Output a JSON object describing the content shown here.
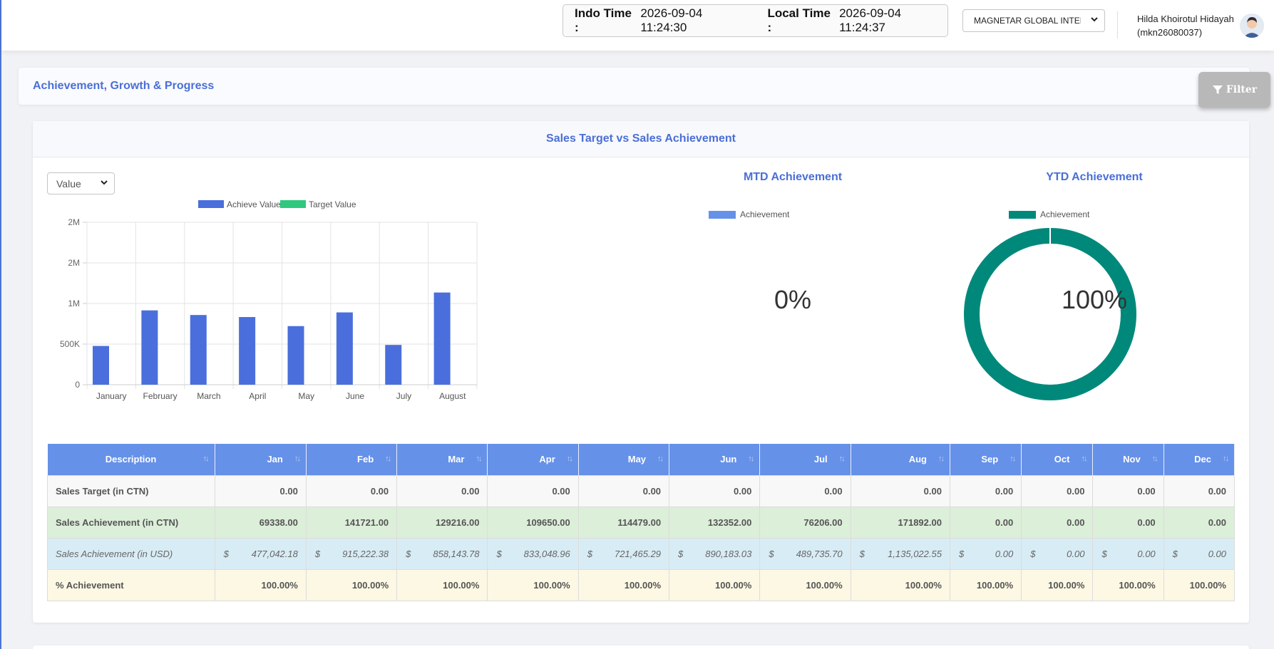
{
  "topbar": {
    "indo_time_label": "Indo Time :",
    "indo_time_value": "2026-09-04 11:24:30",
    "local_time_label": "Local Time :",
    "local_time_value": "2026-09-04 11:24:37",
    "company_select": "MAGNETAR GLOBAL INTERNATIONAL",
    "user_name": "Hilda Khoirotul Hidayah",
    "user_id": "(mkn26080037)"
  },
  "header": {
    "title": "Achievement, Growth & Progress",
    "filter_label": "Filter"
  },
  "card": {
    "title": "Sales Target vs Sales Achievement",
    "value_select": "Value"
  },
  "chart_data": [
    {
      "type": "bar",
      "categories": [
        "January",
        "February",
        "March",
        "April",
        "May",
        "June",
        "July",
        "August"
      ],
      "series": [
        {
          "name": "Achieve Value",
          "values": [
            477042.18,
            915222.38,
            858143.78,
            833048.96,
            721465.29,
            890183.03,
            489735.7,
            1135022.55
          ],
          "color": "#4a6fdc"
        },
        {
          "name": "Target Value",
          "values": [
            0,
            0,
            0,
            0,
            0,
            0,
            0,
            0
          ],
          "color": "#2ec97f"
        }
      ],
      "yticks": [
        "0",
        "500K",
        "1M",
        "2M",
        "2M"
      ],
      "ylim": [
        0,
        2000000
      ],
      "legend": "top",
      "grid": true
    },
    {
      "type": "pie",
      "title": "MTD Achievement",
      "series": [
        {
          "name": "Achievement",
          "values": [
            0
          ],
          "color": "#6691e8"
        }
      ],
      "center_label": "0%"
    },
    {
      "type": "pie",
      "title": "YTD Achievement",
      "series": [
        {
          "name": "Achievement",
          "values": [
            100
          ],
          "color": "#00897b"
        }
      ],
      "center_label": "100%"
    }
  ],
  "gauges": {
    "mtd": {
      "title": "MTD Achievement",
      "legend": "Achievement",
      "value": "0%",
      "color": "#6691e8"
    },
    "ytd": {
      "title": "YTD Achievement",
      "legend": "Achievement",
      "value": "100%",
      "color": "#00897b"
    }
  },
  "table": {
    "headers": [
      "Description",
      "Jan",
      "Feb",
      "Mar",
      "Apr",
      "May",
      "Jun",
      "Jul",
      "Aug",
      "Sep",
      "Oct",
      "Nov",
      "Dec"
    ],
    "rows": [
      {
        "label": "Sales Target (in CTN)",
        "values": [
          "0.00",
          "0.00",
          "0.00",
          "0.00",
          "0.00",
          "0.00",
          "0.00",
          "0.00",
          "0.00",
          "0.00",
          "0.00",
          "0.00"
        ]
      },
      {
        "label": "Sales Achievement (in CTN)",
        "values": [
          "69338.00",
          "141721.00",
          "129216.00",
          "109650.00",
          "114479.00",
          "132352.00",
          "76206.00",
          "171892.00",
          "0.00",
          "0.00",
          "0.00",
          "0.00"
        ]
      },
      {
        "label": "Sales Achievement (in USD)",
        "currency": "$",
        "values": [
          "477,042.18",
          "915,222.38",
          "858,143.78",
          "833,048.96",
          "721,465.29",
          "890,183.03",
          "489,735.70",
          "1,135,022.55",
          "0.00",
          "0.00",
          "0.00",
          "0.00"
        ]
      },
      {
        "label": "% Achievement",
        "values": [
          "100.00%",
          "100.00%",
          "100.00%",
          "100.00%",
          "100.00%",
          "100.00%",
          "100.00%",
          "100.00%",
          "100.00%",
          "100.00%",
          "100.00%",
          "100.00%"
        ]
      }
    ]
  }
}
